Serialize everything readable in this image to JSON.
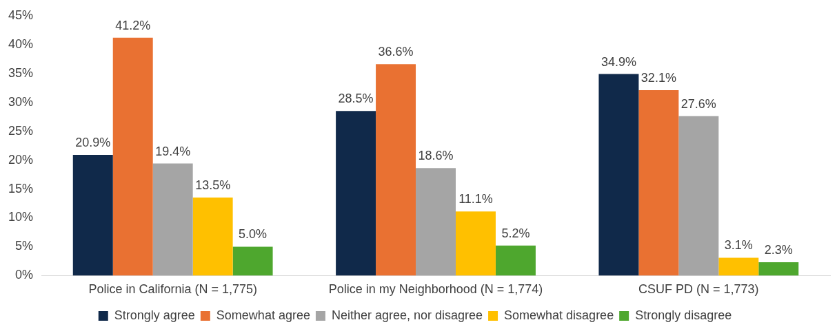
{
  "chart_data": {
    "type": "bar",
    "categories": [
      "Police in California (N = 1,775)",
      "Police in my Neighborhood (N = 1,774)",
      "CSUF PD (N = 1,773)"
    ],
    "series": [
      {
        "name": "Strongly agree",
        "color": "#10294a",
        "values": [
          20.9,
          28.5,
          34.9
        ],
        "value_labels": [
          "20.9%",
          "28.5%",
          "34.9%"
        ]
      },
      {
        "name": "Somewhat agree",
        "color": "#e97132",
        "values": [
          41.2,
          36.6,
          32.1
        ],
        "value_labels": [
          "41.2%",
          "36.6%",
          "32.1%"
        ]
      },
      {
        "name": "Neither agree, nor disagree",
        "color": "#a5a5a5",
        "values": [
          19.4,
          18.6,
          27.6
        ],
        "value_labels": [
          "19.4%",
          "18.6%",
          "27.6%"
        ]
      },
      {
        "name": "Somewhat disagree",
        "color": "#ffc000",
        "values": [
          13.5,
          11.1,
          3.1
        ],
        "value_labels": [
          "13.5%",
          "11.1%",
          "3.1%"
        ]
      },
      {
        "name": "Strongly disagree",
        "color": "#4ea72e",
        "values": [
          5.0,
          5.2,
          2.3
        ],
        "value_labels": [
          "5.0%",
          "5.2%",
          "2.3%"
        ]
      }
    ],
    "ylim": [
      0,
      45
    ],
    "yticks": [
      {
        "value": 0,
        "label": "0%"
      },
      {
        "value": 5,
        "label": "5%"
      },
      {
        "value": 10,
        "label": "10%"
      },
      {
        "value": 15,
        "label": "15%"
      },
      {
        "value": 20,
        "label": "20%"
      },
      {
        "value": 25,
        "label": "25%"
      },
      {
        "value": 30,
        "label": "30%"
      },
      {
        "value": 35,
        "label": "35%"
      },
      {
        "value": 40,
        "label": "40%"
      },
      {
        "value": 45,
        "label": "45%"
      }
    ],
    "grid": false,
    "legend": "bottom"
  }
}
